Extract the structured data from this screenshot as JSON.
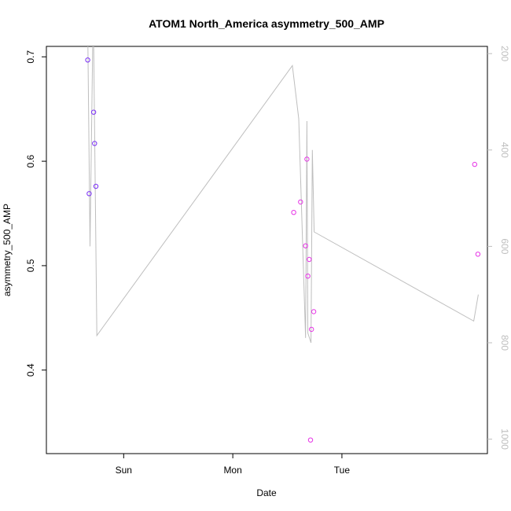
{
  "chart_data": {
    "type": "scatter",
    "title": "ATOM1 North_America asymmetry_500_AMP",
    "xlabel": "Date",
    "ylabel": "asymmetry_500_AMP",
    "x_axis": {
      "kind": "date",
      "range_hours": [
        -17,
        80
      ],
      "ticks": [
        {
          "label": "Sun",
          "hour": 0
        },
        {
          "label": "Mon",
          "hour": 24
        },
        {
          "label": "Tue",
          "hour": 48
        }
      ]
    },
    "y_left": {
      "range": [
        0.32,
        0.71
      ],
      "ticks": [
        "0.4",
        "0.5",
        "0.6",
        "0.7"
      ]
    },
    "y_right": {
      "reversed": true,
      "range": [
        1030,
        185
      ],
      "ticks": [
        "200",
        "400",
        "600",
        "800",
        "1000"
      ],
      "color": "#bebebe"
    },
    "colors": {
      "early_points": "#7b2ff7",
      "late_points": "#e633e6",
      "line": "#bebebe"
    },
    "series": [
      {
        "kind": "points",
        "color_key": "early_points",
        "points": [
          {
            "h": -7.9,
            "y": 0.697
          },
          {
            "h": -7.6,
            "y": 0.569
          },
          {
            "h": -6.6,
            "y": 0.647
          },
          {
            "h": -6.4,
            "y": 0.617
          },
          {
            "h": -6.1,
            "y": 0.576
          }
        ]
      },
      {
        "kind": "points",
        "color_key": "late_points",
        "points": [
          {
            "h": 37.4,
            "y": 0.551
          },
          {
            "h": 38.9,
            "y": 0.561
          },
          {
            "h": 40.0,
            "y": 0.519
          },
          {
            "h": 40.3,
            "y": 0.602
          },
          {
            "h": 40.5,
            "y": 0.49
          },
          {
            "h": 40.8,
            "y": 0.506
          },
          {
            "h": 41.1,
            "y": 0.333
          },
          {
            "h": 41.3,
            "y": 0.439
          },
          {
            "h": 41.8,
            "y": 0.456
          },
          {
            "h": 77.2,
            "y": 0.597
          },
          {
            "h": 77.9,
            "y": 0.511
          }
        ]
      },
      {
        "kind": "line",
        "axis": "right",
        "color_key": "line",
        "points": [
          {
            "h": -7.9,
            "y": 150
          },
          {
            "h": -7.4,
            "y": 600
          },
          {
            "h": -6.7,
            "y": 100
          },
          {
            "h": -5.9,
            "y": 785
          },
          {
            "h": 37.1,
            "y": 225
          },
          {
            "h": 38.5,
            "y": 335
          },
          {
            "h": 40.0,
            "y": 790
          },
          {
            "h": 40.3,
            "y": 340
          },
          {
            "h": 40.5,
            "y": 780
          },
          {
            "h": 41.2,
            "y": 800
          },
          {
            "h": 41.5,
            "y": 400
          },
          {
            "h": 41.9,
            "y": 570
          },
          {
            "h": 77.0,
            "y": 755
          },
          {
            "h": 78.0,
            "y": 700
          }
        ]
      }
    ]
  }
}
